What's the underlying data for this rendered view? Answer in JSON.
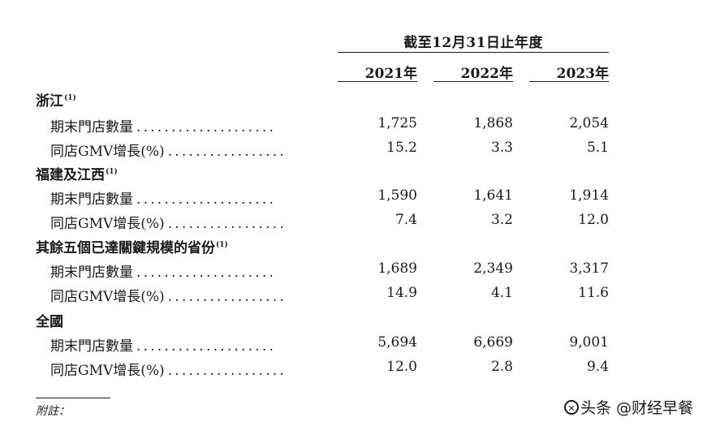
{
  "header": {
    "period_title": "截至12月31日止年度",
    "years": [
      "2021年",
      "2022年",
      "2023年"
    ]
  },
  "sections": [
    {
      "title": "浙江",
      "note": "(1)",
      "rows": [
        {
          "label": "期末門店數量",
          "values": [
            "1,725",
            "1,868",
            "2,054"
          ]
        },
        {
          "label": "同店GMV增長(%)",
          "values": [
            "15.2",
            "3.3",
            "5.1"
          ]
        }
      ]
    },
    {
      "title": "福建及江西",
      "note": "(1)",
      "rows": [
        {
          "label": "期末門店數量",
          "values": [
            "1,590",
            "1,641",
            "1,914"
          ]
        },
        {
          "label": "同店GMV增長(%)",
          "values": [
            "7.4",
            "3.2",
            "12.0"
          ]
        }
      ]
    },
    {
      "title": "其餘五個已達關鍵規模的省份",
      "note": "(1)",
      "rows": [
        {
          "label": "期末門店數量",
          "values": [
            "1,689",
            "2,349",
            "3,317"
          ]
        },
        {
          "label": "同店GMV增長(%)",
          "values": [
            "14.9",
            "4.1",
            "11.6"
          ]
        }
      ]
    },
    {
      "title": "全國",
      "note": "",
      "rows": [
        {
          "label": "期末門店數量",
          "values": [
            "5,694",
            "6,669",
            "9,001"
          ]
        },
        {
          "label": "同店GMV增長(%)",
          "values": [
            "12.0",
            "2.8",
            "9.4"
          ]
        }
      ]
    }
  ],
  "footnote": {
    "label": "附註："
  },
  "watermark": {
    "text": "头条 @财经早餐",
    "icon": "toutiao-logo-icon"
  }
}
